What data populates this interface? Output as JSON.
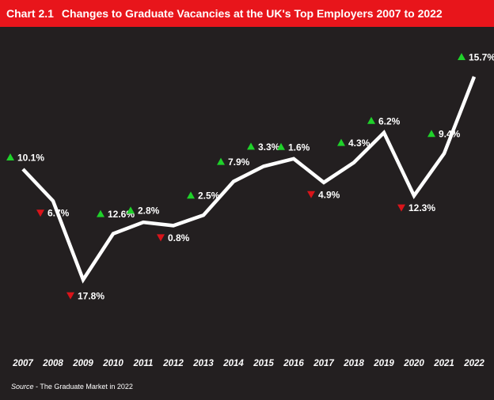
{
  "header": {
    "chart_number": "Chart 2.1",
    "title": "Changes to Graduate Vacancies at the UK's Top Employers 2007 to 2022"
  },
  "source": {
    "label": "Source",
    "text": " - The Graduate Market in 2022"
  },
  "colors": {
    "header_bg": "#e8151b",
    "background": "#231f20",
    "line": "#ffffff",
    "up": "#1fd12a",
    "down": "#d9141a"
  },
  "chart_data": {
    "type": "line",
    "title": "Changes to Graduate Vacancies at the UK's Top Employers 2007 to 2022",
    "x": [
      "2007",
      "2008",
      "2009",
      "2010",
      "2011",
      "2012",
      "2013",
      "2014",
      "2015",
      "2016",
      "2017",
      "2018",
      "2019",
      "2020",
      "2021",
      "2022"
    ],
    "annotations": [
      {
        "label": "10.1%",
        "direction": "up"
      },
      {
        "label": "6.7%",
        "direction": "down"
      },
      {
        "label": "17.8%",
        "direction": "down"
      },
      {
        "label": "12.6%",
        "direction": "up"
      },
      {
        "label": "2.8%",
        "direction": "up"
      },
      {
        "label": "0.8%",
        "direction": "down"
      },
      {
        "label": "2.5%",
        "direction": "up"
      },
      {
        "label": "7.9%",
        "direction": "up"
      },
      {
        "label": "3.3%",
        "direction": "up"
      },
      {
        "label": "1.6%",
        "direction": "up"
      },
      {
        "label": "4.9%",
        "direction": "down"
      },
      {
        "label": "4.3%",
        "direction": "up"
      },
      {
        "label": "6.2%",
        "direction": "up"
      },
      {
        "label": "12.3%",
        "direction": "down"
      },
      {
        "label": "9.4%",
        "direction": "up"
      },
      {
        "label": "15.7%",
        "direction": "up"
      }
    ],
    "series": [
      {
        "values": [
          100,
          93.3,
          76.7,
          86.4,
          88.8,
          88.1,
          90.3,
          97.4,
          100.6,
          102.2,
          97.2,
          101.4,
          107.7,
          94.4,
          103.3,
          119.5
        ]
      }
    ],
    "ylim": [
      70,
      125
    ],
    "grid": false,
    "legend": "none"
  }
}
